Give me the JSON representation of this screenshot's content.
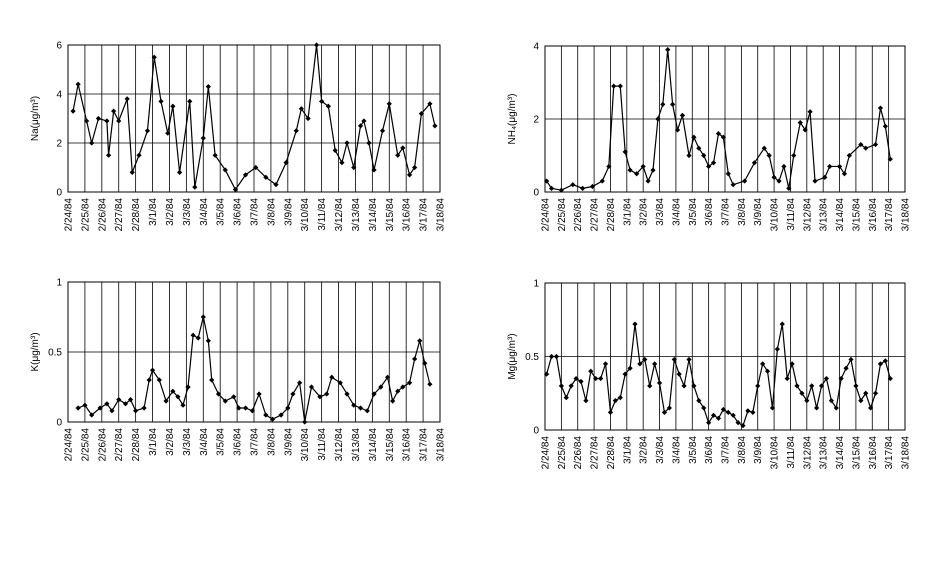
{
  "chart_data": [
    {
      "type": "line",
      "y_label": "Na(μg/m³)",
      "grid": true,
      "color": "#000000",
      "xlim": [
        0,
        22
      ],
      "ylim": [
        0,
        6
      ],
      "yticks": [
        0,
        2,
        4,
        6
      ],
      "xticks": [
        {
          "value": 0,
          "label": "2/24/84"
        },
        {
          "value": 1,
          "label": "2/25/84"
        },
        {
          "value": 2,
          "label": "2/26/84"
        },
        {
          "value": 3,
          "label": "2/27/84"
        },
        {
          "value": 4,
          "label": "2/28/84"
        },
        {
          "value": 5,
          "label": "3/1/84"
        },
        {
          "value": 6,
          "label": "3/2/84"
        },
        {
          "value": 7,
          "label": "3/3/84"
        },
        {
          "value": 8,
          "label": "3/4/84"
        },
        {
          "value": 9,
          "label": "3/5/84"
        },
        {
          "value": 10,
          "label": "3/6/84"
        },
        {
          "value": 11,
          "label": "3/7/84"
        },
        {
          "value": 12,
          "label": "3/8/84"
        },
        {
          "value": 13,
          "label": "3/9/84"
        },
        {
          "value": 14,
          "label": "3/10/84"
        },
        {
          "value": 15,
          "label": "3/11/84"
        },
        {
          "value": 16,
          "label": "3/12/84"
        },
        {
          "value": 17,
          "label": "3/13/84"
        },
        {
          "value": 18,
          "label": "3/14/84"
        },
        {
          "value": 19,
          "label": "3/15/84"
        },
        {
          "value": 20,
          "label": "3/16/84"
        },
        {
          "value": 21,
          "label": "3/17/84"
        },
        {
          "value": 22,
          "label": "3/18/84"
        }
      ],
      "x": [
        0.3,
        0.6,
        1.1,
        1.4,
        1.8,
        2.3,
        2.4,
        2.7,
        3.0,
        3.5,
        3.8,
        4.2,
        4.7,
        5.1,
        5.5,
        5.9,
        6.2,
        6.6,
        7.2,
        7.5,
        8.0,
        8.3,
        8.7,
        9.3,
        9.9,
        10.5,
        11.1,
        11.7,
        12.3,
        12.9,
        13.5,
        13.8,
        14.2,
        14.7,
        15.0,
        15.4,
        15.8,
        16.2,
        16.5,
        16.9,
        17.3,
        17.5,
        17.8,
        18.1,
        18.6,
        19.0,
        19.5,
        19.8,
        20.2,
        20.5,
        20.9,
        21.4,
        21.7
      ],
      "values": [
        3.3,
        4.4,
        2.9,
        2.0,
        3.0,
        2.9,
        1.5,
        3.3,
        2.9,
        3.8,
        0.8,
        1.5,
        2.5,
        5.5,
        3.7,
        2.4,
        3.5,
        0.8,
        3.7,
        0.2,
        2.2,
        4.3,
        1.5,
        0.9,
        0.1,
        0.7,
        1.0,
        0.6,
        0.3,
        1.2,
        2.5,
        3.4,
        3.0,
        6.0,
        3.7,
        3.5,
        1.7,
        1.2,
        2.0,
        1.0,
        2.7,
        2.9,
        2.0,
        0.9,
        2.5,
        3.6,
        1.5,
        1.8,
        0.7,
        1.0,
        3.2,
        3.6,
        2.7
      ]
    },
    {
      "type": "line",
      "y_label": "NH₄(μg/m³)",
      "grid": true,
      "color": "#000000",
      "xlim": [
        0,
        22
      ],
      "ylim": [
        0,
        4
      ],
      "yticks": [
        0,
        2,
        4
      ],
      "xticks": [
        {
          "value": 0,
          "label": "2/24/84"
        },
        {
          "value": 1,
          "label": "2/25/84"
        },
        {
          "value": 2,
          "label": "2/26/84"
        },
        {
          "value": 3,
          "label": "2/27/84"
        },
        {
          "value": 4,
          "label": "2/28/84"
        },
        {
          "value": 5,
          "label": "3/1/84"
        },
        {
          "value": 6,
          "label": "3/2/84"
        },
        {
          "value": 7,
          "label": "3/3/84"
        },
        {
          "value": 8,
          "label": "3/4/84"
        },
        {
          "value": 9,
          "label": "3/5/84"
        },
        {
          "value": 10,
          "label": "3/6/84"
        },
        {
          "value": 11,
          "label": "3/7/84"
        },
        {
          "value": 12,
          "label": "3/8/84"
        },
        {
          "value": 13,
          "label": "3/9/84"
        },
        {
          "value": 14,
          "label": "3/10/84"
        },
        {
          "value": 15,
          "label": "3/11/84"
        },
        {
          "value": 16,
          "label": "3/12/84"
        },
        {
          "value": 17,
          "label": "3/13/84"
        },
        {
          "value": 18,
          "label": "3/14/84"
        },
        {
          "value": 19,
          "label": "3/15/84"
        },
        {
          "value": 20,
          "label": "3/16/84"
        },
        {
          "value": 21,
          "label": "3/17/84"
        },
        {
          "value": 22,
          "label": "3/18/84"
        }
      ],
      "x": [
        0.1,
        0.4,
        1.0,
        1.7,
        2.3,
        2.9,
        3.5,
        3.9,
        4.2,
        4.6,
        4.9,
        5.2,
        5.6,
        6.0,
        6.3,
        6.6,
        6.9,
        7.2,
        7.5,
        7.8,
        8.1,
        8.4,
        8.8,
        9.1,
        9.4,
        9.7,
        10.0,
        10.3,
        10.6,
        10.9,
        11.2,
        11.5,
        12.2,
        12.8,
        13.4,
        13.7,
        14.0,
        14.3,
        14.6,
        14.9,
        15.2,
        15.6,
        15.9,
        16.2,
        16.5,
        17.1,
        17.4,
        18.0,
        18.3,
        18.6,
        19.3,
        19.6,
        20.2,
        20.5,
        20.8,
        21.1
      ],
      "values": [
        0.3,
        0.1,
        0.05,
        0.2,
        0.1,
        0.15,
        0.3,
        0.7,
        2.9,
        2.9,
        1.1,
        0.6,
        0.5,
        0.7,
        0.3,
        0.6,
        2.0,
        2.4,
        3.9,
        2.4,
        1.7,
        2.1,
        1.0,
        1.5,
        1.2,
        1.0,
        0.7,
        0.8,
        1.6,
        1.5,
        0.5,
        0.2,
        0.3,
        0.8,
        1.2,
        1.0,
        0.4,
        0.3,
        0.7,
        0.1,
        1.0,
        1.9,
        1.7,
        2.2,
        0.3,
        0.4,
        0.7,
        0.7,
        0.5,
        1.0,
        1.3,
        1.2,
        1.3,
        2.3,
        1.8,
        0.9
      ]
    },
    {
      "type": "line",
      "y_label": "K(μg/m³)",
      "grid": true,
      "color": "#000000",
      "xlim": [
        0,
        22
      ],
      "ylim": [
        0,
        1
      ],
      "yticks": [
        0,
        0.5,
        1
      ],
      "xticks": [
        {
          "value": 0,
          "label": "2/24/84"
        },
        {
          "value": 1,
          "label": "2/25/84"
        },
        {
          "value": 2,
          "label": "2/26/84"
        },
        {
          "value": 3,
          "label": "2/27/84"
        },
        {
          "value": 4,
          "label": "2/28/84"
        },
        {
          "value": 5,
          "label": "3/1/84"
        },
        {
          "value": 6,
          "label": "3/2/84"
        },
        {
          "value": 7,
          "label": "3/3/84"
        },
        {
          "value": 8,
          "label": "3/4/84"
        },
        {
          "value": 9,
          "label": "3/5/84"
        },
        {
          "value": 10,
          "label": "3/6/84"
        },
        {
          "value": 11,
          "label": "3/7/84"
        },
        {
          "value": 12,
          "label": "3/8/84"
        },
        {
          "value": 13,
          "label": "3/9/84"
        },
        {
          "value": 14,
          "label": "3/10/84"
        },
        {
          "value": 15,
          "label": "3/11/84"
        },
        {
          "value": 16,
          "label": "3/12/84"
        },
        {
          "value": 17,
          "label": "3/13/84"
        },
        {
          "value": 18,
          "label": "3/14/84"
        },
        {
          "value": 19,
          "label": "3/15/84"
        },
        {
          "value": 20,
          "label": "3/16/84"
        },
        {
          "value": 21,
          "label": "3/17/84"
        },
        {
          "value": 22,
          "label": "3/18/84"
        }
      ],
      "x": [
        0.6,
        1.0,
        1.4,
        1.9,
        2.3,
        2.6,
        3.0,
        3.4,
        3.7,
        4.0,
        4.5,
        4.8,
        5.0,
        5.4,
        5.8,
        6.2,
        6.5,
        6.8,
        7.1,
        7.4,
        7.7,
        8.0,
        8.3,
        8.5,
        8.9,
        9.3,
        9.8,
        10.1,
        10.5,
        10.9,
        11.3,
        11.7,
        12.1,
        12.6,
        13.0,
        13.3,
        13.7,
        14.0,
        14.4,
        14.9,
        15.3,
        15.6,
        16.1,
        16.5,
        16.9,
        17.3,
        17.7,
        18.1,
        18.5,
        18.9,
        19.2,
        19.5,
        19.8,
        20.2,
        20.5,
        20.8,
        21.1,
        21.4
      ],
      "values": [
        0.1,
        0.12,
        0.05,
        0.1,
        0.13,
        0.08,
        0.16,
        0.13,
        0.16,
        0.08,
        0.1,
        0.3,
        0.37,
        0.3,
        0.15,
        0.22,
        0.18,
        0.12,
        0.25,
        0.62,
        0.6,
        0.75,
        0.58,
        0.3,
        0.2,
        0.15,
        0.18,
        0.1,
        0.1,
        0.08,
        0.2,
        0.05,
        0.02,
        0.05,
        0.1,
        0.2,
        0.28,
        0.0,
        0.25,
        0.18,
        0.2,
        0.32,
        0.28,
        0.2,
        0.12,
        0.1,
        0.08,
        0.2,
        0.25,
        0.32,
        0.15,
        0.22,
        0.25,
        0.28,
        0.45,
        0.58,
        0.42,
        0.27
      ]
    },
    {
      "type": "line",
      "y_label": "Mg(μg/m³)",
      "grid": true,
      "color": "#000000",
      "xlim": [
        0,
        22
      ],
      "ylim": [
        0,
        1
      ],
      "yticks": [
        0,
        0.5,
        1
      ],
      "xticks": [
        {
          "value": 0,
          "label": "2/24/84"
        },
        {
          "value": 1,
          "label": "2/25/84"
        },
        {
          "value": 2,
          "label": "2/26/84"
        },
        {
          "value": 3,
          "label": "2/27/84"
        },
        {
          "value": 4,
          "label": "2/28/84"
        },
        {
          "value": 5,
          "label": "3/1/84"
        },
        {
          "value": 6,
          "label": "3/2/84"
        },
        {
          "value": 7,
          "label": "3/3/84"
        },
        {
          "value": 8,
          "label": "3/4/84"
        },
        {
          "value": 9,
          "label": "3/5/84"
        },
        {
          "value": 10,
          "label": "3/6/84"
        },
        {
          "value": 11,
          "label": "3/7/84"
        },
        {
          "value": 12,
          "label": "3/8/84"
        },
        {
          "value": 13,
          "label": "3/9/84"
        },
        {
          "value": 14,
          "label": "3/10/84"
        },
        {
          "value": 15,
          "label": "3/11/84"
        },
        {
          "value": 16,
          "label": "3/12/84"
        },
        {
          "value": 17,
          "label": "3/13/84"
        },
        {
          "value": 18,
          "label": "3/14/84"
        },
        {
          "value": 19,
          "label": "3/15/84"
        },
        {
          "value": 20,
          "label": "3/16/84"
        },
        {
          "value": 21,
          "label": "3/17/84"
        },
        {
          "value": 22,
          "label": "3/18/84"
        }
      ],
      "x": [
        0.1,
        0.4,
        0.7,
        1.0,
        1.3,
        1.6,
        1.9,
        2.2,
        2.5,
        2.8,
        3.1,
        3.4,
        3.7,
        4.0,
        4.3,
        4.6,
        4.9,
        5.2,
        5.5,
        5.8,
        6.1,
        6.4,
        6.7,
        7.0,
        7.3,
        7.6,
        7.9,
        8.2,
        8.5,
        8.8,
        9.1,
        9.4,
        9.7,
        10.0,
        10.3,
        10.6,
        10.9,
        11.2,
        11.5,
        11.8,
        12.1,
        12.4,
        12.7,
        13.0,
        13.3,
        13.6,
        13.9,
        14.2,
        14.5,
        14.8,
        15.1,
        15.4,
        15.7,
        16.0,
        16.3,
        16.6,
        16.9,
        17.2,
        17.5,
        17.8,
        18.1,
        18.4,
        18.7,
        19.0,
        19.3,
        19.6,
        19.9,
        20.2,
        20.5,
        20.8,
        21.1
      ],
      "values": [
        0.38,
        0.5,
        0.5,
        0.3,
        0.22,
        0.3,
        0.35,
        0.33,
        0.2,
        0.4,
        0.35,
        0.35,
        0.45,
        0.12,
        0.2,
        0.22,
        0.38,
        0.42,
        0.72,
        0.45,
        0.48,
        0.3,
        0.45,
        0.32,
        0.12,
        0.15,
        0.48,
        0.38,
        0.3,
        0.48,
        0.3,
        0.2,
        0.15,
        0.05,
        0.1,
        0.08,
        0.14,
        0.12,
        0.1,
        0.05,
        0.03,
        0.13,
        0.12,
        0.3,
        0.45,
        0.4,
        0.15,
        0.55,
        0.72,
        0.35,
        0.45,
        0.3,
        0.25,
        0.2,
        0.3,
        0.15,
        0.3,
        0.35,
        0.2,
        0.15,
        0.35,
        0.42,
        0.48,
        0.3,
        0.2,
        0.25,
        0.15,
        0.25,
        0.45,
        0.47,
        0.35
      ]
    }
  ]
}
